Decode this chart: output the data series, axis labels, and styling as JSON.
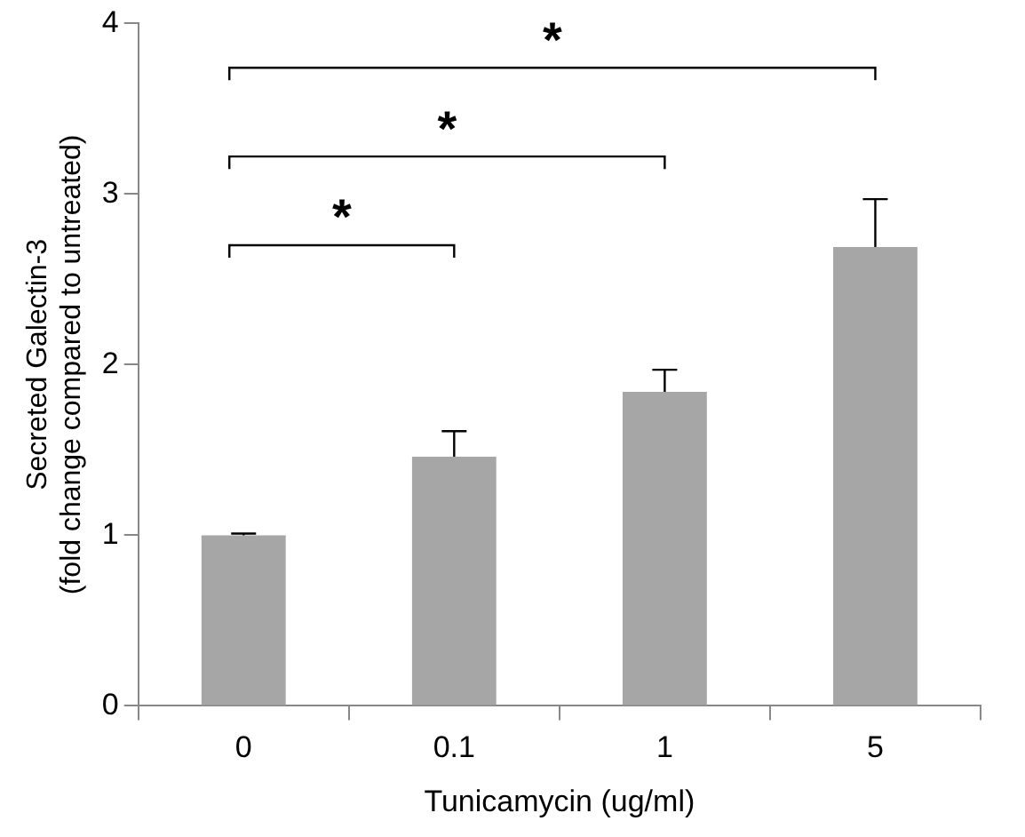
{
  "chart_data": {
    "type": "bar",
    "categories": [
      "0",
      "0.1",
      "1",
      "5"
    ],
    "values": [
      1.0,
      1.46,
      1.84,
      2.69
    ],
    "errors": [
      [
        1.0,
        1.01
      ],
      [
        1.46,
        1.61
      ],
      [
        1.84,
        1.97
      ],
      [
        2.69,
        2.97
      ]
    ],
    "color": "#a6a6a6",
    "xlabel": "Tunicamycin (ug/ml)",
    "ylabel": "Secreted Galectin-3\n(fold change compared to untreated)",
    "ylim": [
      0,
      4
    ],
    "yticks": [
      0,
      1,
      2,
      3,
      4
    ],
    "grid": false,
    "legend": false,
    "annotations": [
      "*",
      "*",
      "*"
    ]
  }
}
